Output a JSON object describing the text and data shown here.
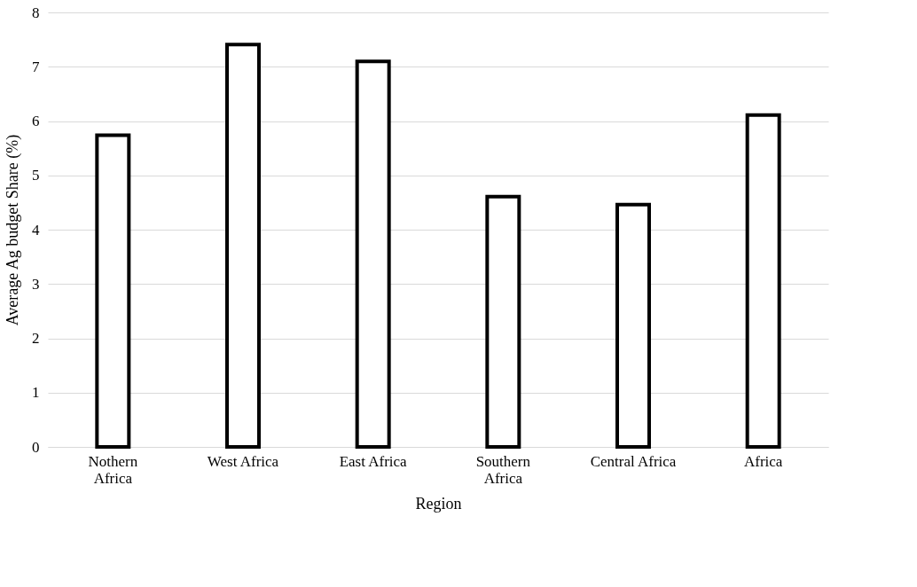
{
  "chart_data": {
    "type": "bar",
    "xlabel": "Region",
    "ylabel": "Average Ag budget Share (%)",
    "categories": [
      "Nothern\nAfrica",
      "West Africa",
      "East Africa",
      "Southern\nAfrica",
      "Central Africa",
      "Africa"
    ],
    "values": [
      5.74,
      7.41,
      7.1,
      4.61,
      4.46,
      6.11
    ],
    "color": "#000000",
    "ylim": [
      0,
      8
    ],
    "yticks": [
      0,
      1,
      2,
      3,
      4,
      5,
      6,
      7,
      8
    ],
    "grid": "y"
  }
}
